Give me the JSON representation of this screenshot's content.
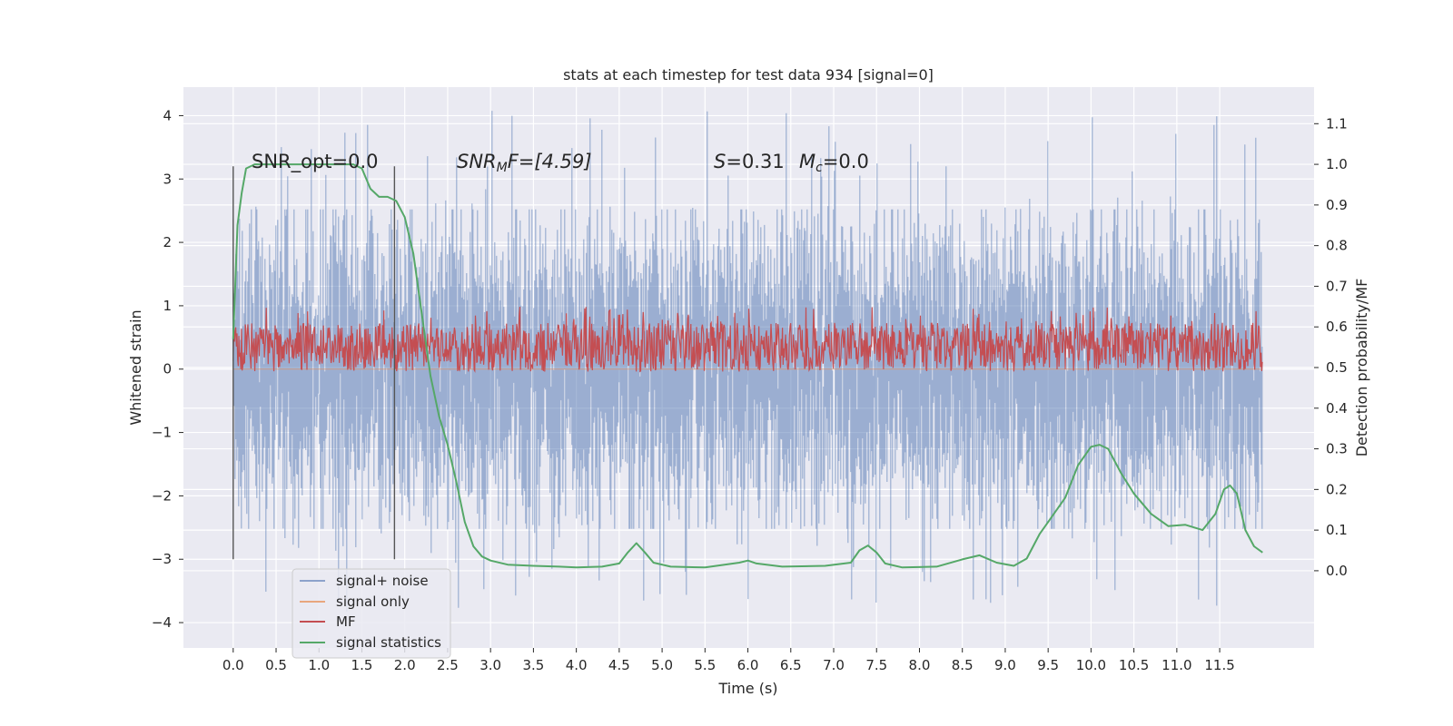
{
  "chart_data": {
    "type": "line",
    "title": "stats at each timestep for test data 934 [signal=0]",
    "xlabel": "Time (s)",
    "ylabel_left": "Whitened strain",
    "ylabel_right": "Detection probability/MF",
    "xlim": [
      -0.58,
      12.6
    ],
    "ylim_left": [
      -4.4,
      4.45
    ],
    "ylim_right": [
      -0.19,
      1.19
    ],
    "x_ticks": [
      "0.0",
      "0.5",
      "1.0",
      "1.5",
      "2.0",
      "2.5",
      "3.0",
      "3.5",
      "4.0",
      "4.5",
      "5.0",
      "5.5",
      "6.0",
      "6.5",
      "7.0",
      "7.5",
      "8.0",
      "8.5",
      "9.0",
      "9.5",
      "10.0",
      "10.5",
      "11.0",
      "11.5"
    ],
    "y_ticks_left": [
      "−4",
      "−3",
      "−2",
      "−1",
      "0",
      "1",
      "2",
      "3",
      "4"
    ],
    "y_ticks_right": [
      "0.0",
      "0.1",
      "0.2",
      "0.3",
      "0.4",
      "0.5",
      "0.6",
      "0.7",
      "0.8",
      "0.9",
      "1.0",
      "1.1"
    ],
    "grid": true,
    "background": "#eaeaf2",
    "annotations": {
      "snr_opt": "SNR_opt=0.0",
      "snr_mf_prefix": "SNR",
      "snr_mf_sub": "M",
      "snr_mf_suffix": "F=[4.59]",
      "s_label": "S",
      "s_value": "=0.31",
      "mc_label": "M",
      "mc_sub": "c",
      "mc_value": "=0.0"
    },
    "vlines_x": [
      0.0,
      1.88
    ],
    "vline_ylim": [
      -3.0,
      3.2
    ],
    "legend_placement": "lower-left",
    "series": [
      {
        "name": "signal+ noise",
        "color": "#4c72b0",
        "axis": "left",
        "x_range": [
          0.0,
          12.0
        ],
        "distribution": {
          "center": 0.0,
          "core_halfwidth": 2.4,
          "peak_max": 4.1,
          "peak_min": -3.85
        }
      },
      {
        "name": "signal only",
        "color": "#dd8452",
        "axis": "left",
        "x_range": [
          0.0,
          12.0
        ],
        "values_description": "flat at 0"
      },
      {
        "name": "MF",
        "color": "#c44e52",
        "axis": "right",
        "x_range": [
          0.0,
          12.0
        ],
        "distribution": {
          "low": 0.49,
          "high": 0.61,
          "peak_max": 0.65
        }
      },
      {
        "name": "signal statistics",
        "color": "#55a868",
        "axis": "right",
        "x": [
          0.0,
          0.05,
          0.1,
          0.15,
          0.25,
          0.4,
          0.6,
          0.9,
          1.1,
          1.3,
          1.4,
          1.5,
          1.6,
          1.7,
          1.8,
          1.9,
          2.0,
          2.1,
          2.2,
          2.3,
          2.4,
          2.5,
          2.6,
          2.7,
          2.8,
          2.9,
          3.0,
          3.2,
          3.5,
          3.8,
          4.0,
          4.3,
          4.5,
          4.6,
          4.7,
          4.8,
          4.9,
          5.1,
          5.5,
          5.9,
          6.0,
          6.1,
          6.4,
          6.9,
          7.2,
          7.3,
          7.4,
          7.5,
          7.6,
          7.8,
          8.2,
          8.5,
          8.7,
          8.9,
          9.1,
          9.25,
          9.4,
          9.5,
          9.7,
          9.85,
          10.0,
          10.1,
          10.2,
          10.35,
          10.5,
          10.7,
          10.9,
          11.1,
          11.3,
          11.45,
          11.55,
          11.62,
          11.7,
          11.8,
          11.9,
          12.0
        ],
        "y": [
          0.57,
          0.85,
          0.93,
          0.99,
          1.0,
          1.0,
          1.0,
          1.0,
          1.0,
          1.0,
          1.0,
          0.99,
          0.94,
          0.92,
          0.92,
          0.91,
          0.87,
          0.78,
          0.63,
          0.48,
          0.38,
          0.31,
          0.22,
          0.12,
          0.06,
          0.035,
          0.025,
          0.015,
          0.012,
          0.01,
          0.008,
          0.01,
          0.018,
          0.045,
          0.068,
          0.045,
          0.02,
          0.01,
          0.008,
          0.02,
          0.025,
          0.018,
          0.01,
          0.012,
          0.02,
          0.05,
          0.062,
          0.045,
          0.018,
          0.008,
          0.01,
          0.028,
          0.038,
          0.02,
          0.012,
          0.03,
          0.09,
          0.12,
          0.18,
          0.26,
          0.305,
          0.31,
          0.3,
          0.24,
          0.19,
          0.14,
          0.11,
          0.113,
          0.1,
          0.14,
          0.2,
          0.21,
          0.19,
          0.1,
          0.06,
          0.045
        ]
      }
    ]
  }
}
